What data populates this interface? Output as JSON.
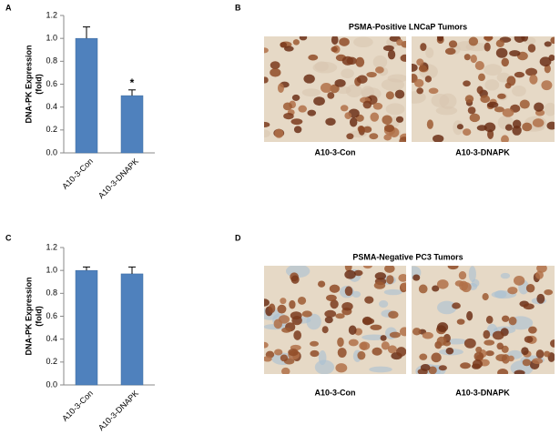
{
  "chart_data": [
    {
      "type": "bar",
      "panel": "A",
      "ylabel": [
        "DNA-PK Expression",
        "(fold)"
      ],
      "categories": [
        "A10-3-Con",
        "A10-3-DNAPK"
      ],
      "values": [
        1.0,
        0.5
      ],
      "errors": [
        0.1,
        0.05
      ],
      "annotations": [
        null,
        "*"
      ],
      "color": "#4f81bd",
      "ylim": [
        0,
        1.2
      ],
      "yticks": [
        {
          "value": 0,
          "label": "0.0"
        },
        0.2,
        0.4,
        0.6,
        0.8,
        {
          "value": 1,
          "label": "1.0"
        },
        1.2
      ]
    },
    {
      "type": "bar",
      "panel": "C",
      "ylabel": [
        "DNA-PK Expression",
        "(fold)"
      ],
      "categories": [
        "A10-3-Con",
        "A10-3-DNAPK"
      ],
      "values": [
        1.0,
        0.97
      ],
      "errors": [
        0.03,
        0.06
      ],
      "annotations": [
        null,
        null
      ],
      "color": "#4f81bd",
      "ylim": [
        0,
        1.2
      ],
      "yticks": [
        {
          "value": 0,
          "label": "0.0"
        },
        0.2,
        0.4,
        0.6,
        0.8,
        {
          "value": 1,
          "label": "1.0"
        },
        1.2
      ]
    }
  ],
  "images": [
    {
      "panel": "B",
      "title": "PSMA-Positive LNCaP Tumors",
      "captions": [
        "A10-3-Con",
        "A10-3-DNAPK"
      ]
    },
    {
      "panel": "D",
      "title": "PSMA-Negative PC3 Tumors",
      "captions": [
        "A10-3-Con",
        "A10-3-DNAPK"
      ]
    }
  ]
}
